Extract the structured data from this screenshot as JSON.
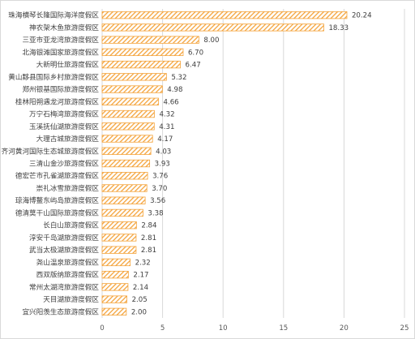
{
  "chart_data": {
    "type": "bar",
    "orientation": "horizontal",
    "title": "",
    "xlabel": "",
    "ylabel": "",
    "xlim": [
      0,
      25
    ],
    "x_ticks": [
      0,
      5,
      10,
      15,
      20,
      25
    ],
    "grid": true,
    "legend": "none",
    "bar_color": "#f4a43c",
    "bar_pattern": "diagonal-hatch",
    "categories": [
      "珠海横琴长隆国际海洋度假区",
      "神农架木鱼旅游度假区",
      "三亚市亚龙湾旅游度假区",
      "北海银滩国家旅游度假区",
      "大新明仕旅游度假区",
      "黄山黟县国际乡村旅游度假区",
      "郑州银基国际旅游度假区",
      "桂林阳朔遇龙河旅游度假区",
      "万宁石梅湾旅游度假区",
      "玉溪抚仙湖旅游度假区",
      "大理古城旅游度假区",
      "齐河黄河国际生态城旅游度假区",
      "三清山金沙旅游度假区",
      "德宏芒市孔雀湖旅游度假区",
      "崇礼冰雪旅游度假区",
      "琼海博鳌东屿岛旅游度假区",
      "德清莫干山国际旅游度假区",
      "长白山旅游度假区",
      "淳安千岛湖旅游度假区",
      "武当太极湖旅游度假区",
      "尧山温泉旅游度假区",
      "西双版纳旅游度假区",
      "常州太湖湾旅游度假区",
      "天目湖旅游度假区",
      "宜兴阳羡生态旅游度假区"
    ],
    "values": [
      20.24,
      18.33,
      8.0,
      6.7,
      6.47,
      5.32,
      4.98,
      4.66,
      4.32,
      4.31,
      4.17,
      4.03,
      3.93,
      3.76,
      3.7,
      3.56,
      3.38,
      2.84,
      2.81,
      2.81,
      2.32,
      2.17,
      2.14,
      2.05,
      2.0
    ],
    "value_labels": [
      "20.24",
      "18.33",
      "8.00",
      "6.70",
      "6.47",
      "5.32",
      "4.98",
      "4.66",
      "4.32",
      "4.31",
      "4.17",
      "4.03",
      "3.93",
      "3.76",
      "3.70",
      "3.56",
      "3.38",
      "2.84",
      "2.81",
      "2.81",
      "2.32",
      "2.17",
      "2.14",
      "2.05",
      "2.00"
    ]
  }
}
